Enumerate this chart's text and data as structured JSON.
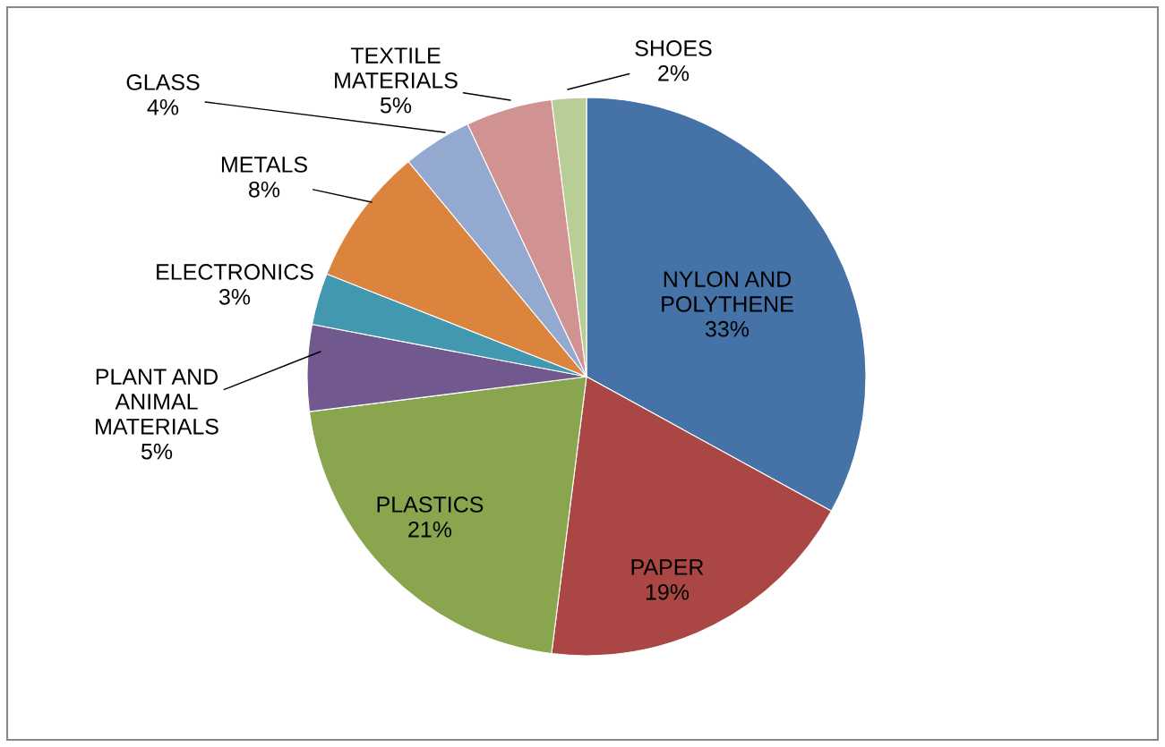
{
  "chart_data": {
    "type": "pie",
    "categories": [
      "NYLON AND\nPOLYTHENE",
      "PAPER",
      "PLASTICS",
      "PLANT AND\nANIMAL\nMATERIALS",
      "ELECTRONICS",
      "METALS",
      "GLASS",
      "TEXTILE\nMATERIALS",
      "SHOES"
    ],
    "values": [
      33,
      19,
      21,
      5,
      3,
      8,
      4,
      5,
      2
    ],
    "colors": [
      "#4572a7",
      "#aa4643",
      "#89a54e",
      "#71588f",
      "#4198af",
      "#db843d",
      "#93a9cf",
      "#d19392",
      "#b9cd96"
    ],
    "value_labels": [
      "33%",
      "19%",
      "21%",
      "5%",
      "3%",
      "8%",
      "4%",
      "5%",
      "2%"
    ]
  }
}
